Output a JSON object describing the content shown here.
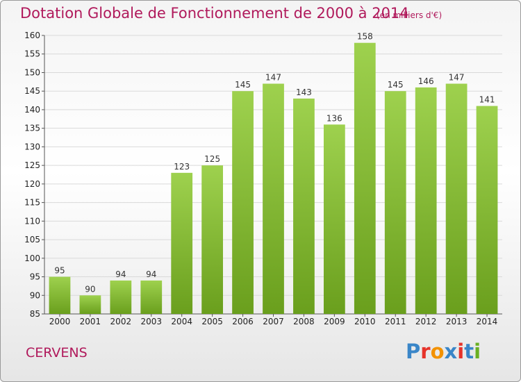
{
  "header": {
    "title": "Dotation Globale de Fonctionnement de 2000 à 2014",
    "subtitle": "(en milliers d'€)"
  },
  "footer": {
    "commune": "CERVENS",
    "logo": "Proxiti",
    "logo_colors": [
      "#3a86c8",
      "#e6332a",
      "#f39200",
      "#3a86c8",
      "#e6332a",
      "#3a86c8",
      "#6ab023"
    ]
  },
  "colors": {
    "bar_light": "#9ed14e",
    "bar_dark": "#6a9f1d",
    "title": "#b0195b",
    "grid": "#d9d9d9"
  },
  "chart_data": {
    "type": "bar",
    "title": "Dotation Globale de Fonctionnement de 2000 à 2014",
    "subtitle": "(en milliers d'€)",
    "categories": [
      "2000",
      "2001",
      "2002",
      "2003",
      "2004",
      "2005",
      "2006",
      "2007",
      "2008",
      "2009",
      "2010",
      "2011",
      "2012",
      "2013",
      "2014"
    ],
    "values": [
      95,
      90,
      94,
      94,
      123,
      125,
      145,
      147,
      143,
      136,
      158,
      145,
      146,
      147,
      141
    ],
    "ylim": [
      85,
      160
    ],
    "yticks": [
      85,
      90,
      95,
      100,
      105,
      110,
      115,
      120,
      125,
      130,
      135,
      140,
      145,
      150,
      155,
      160
    ],
    "grid": true,
    "data_labels": true
  }
}
